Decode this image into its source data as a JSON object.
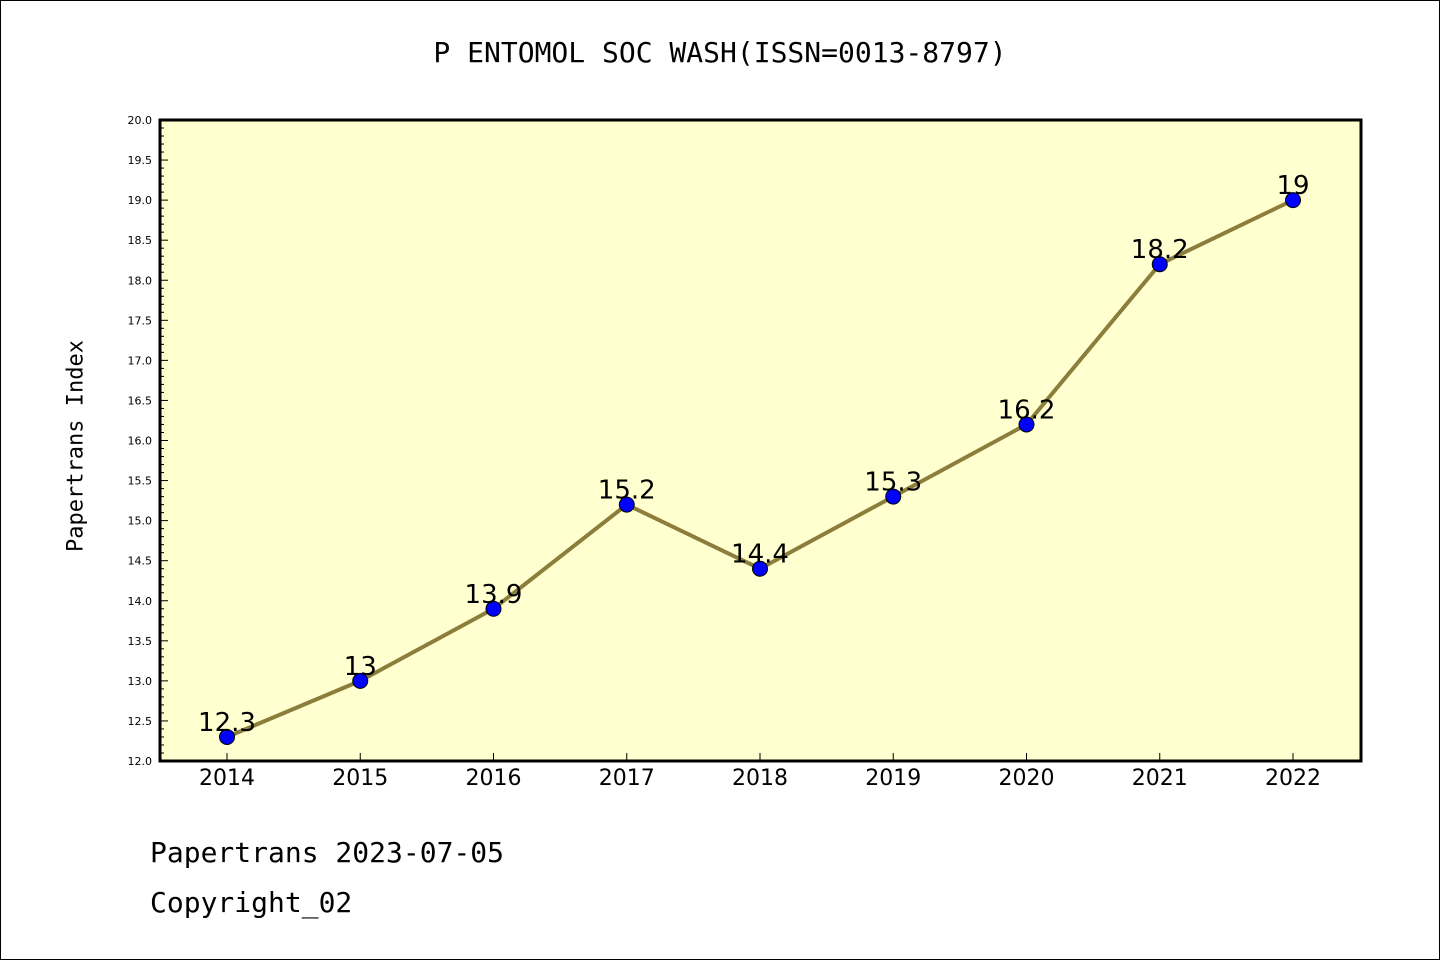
{
  "chart_data": {
    "type": "line",
    "title": "P ENTOMOL SOC WASH(ISSN=0013-8797)",
    "xlabel": "",
    "ylabel": "Papertrans Index",
    "categories": [
      "2014",
      "2015",
      "2016",
      "2017",
      "2018",
      "2019",
      "2020",
      "2021",
      "2022"
    ],
    "series": [
      {
        "values": [
          12.3,
          13,
          13.9,
          15.2,
          14.4,
          15.3,
          16.2,
          18.2,
          19
        ],
        "labels": [
          "12.3",
          "13",
          "13.9",
          "15.2",
          "14.4",
          "15.3",
          "16.2",
          "18.2",
          "19"
        ]
      }
    ],
    "ylim": [
      12.0,
      20.0
    ],
    "yticks": [
      "12.0",
      "12.5",
      "13.0",
      "13.5",
      "14.0",
      "14.5",
      "15.0",
      "15.5",
      "16.0",
      "16.5",
      "17.0",
      "17.5",
      "18.0",
      "18.5",
      "19.0",
      "19.5",
      "20.0"
    ],
    "grid": false,
    "colors": {
      "plot_background": "#ffffd0",
      "line": "#8b7d3a",
      "marker": "#0000ff"
    }
  },
  "footer": {
    "line1": "Papertrans 2023-07-05",
    "line2": "Copyright_02"
  }
}
